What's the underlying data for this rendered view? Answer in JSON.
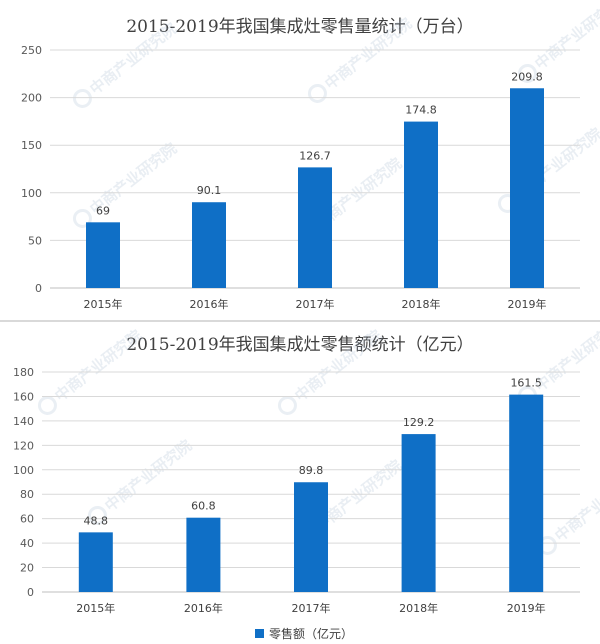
{
  "chart_data": [
    {
      "type": "bar",
      "title": "2015-2019年我国集成灶零售量统计（万台）",
      "categories": [
        "2015年",
        "2016年",
        "2017年",
        "2018年",
        "2019年"
      ],
      "values": [
        69,
        90.1,
        126.7,
        174.8,
        209.8
      ],
      "data_labels": [
        "69",
        "90.1",
        "126.7",
        "174.8",
        "209.8"
      ],
      "ylim": [
        0,
        250
      ],
      "yticks": [
        0,
        50,
        100,
        150,
        200,
        250
      ],
      "grid": true,
      "color": "#0f6fc6"
    },
    {
      "type": "bar",
      "title": "2015-2019年我国集成灶零售额统计（亿元）",
      "categories": [
        "2015年",
        "2016年",
        "2017年",
        "2018年",
        "2019年"
      ],
      "series": [
        {
          "name": "零售额（亿元）",
          "values": [
            48.8,
            60.8,
            89.8,
            129.2,
            161.5
          ]
        }
      ],
      "data_labels": [
        "48.8",
        "60.8",
        "89.8",
        "129.2",
        "161.5"
      ],
      "ylim": [
        0,
        180
      ],
      "yticks": [
        0,
        20,
        40,
        60,
        80,
        100,
        120,
        140,
        160,
        180
      ],
      "grid": true,
      "legend": "bottom",
      "color": "#0f6fc6"
    }
  ],
  "watermark": {
    "text": "中商产业研究院"
  }
}
